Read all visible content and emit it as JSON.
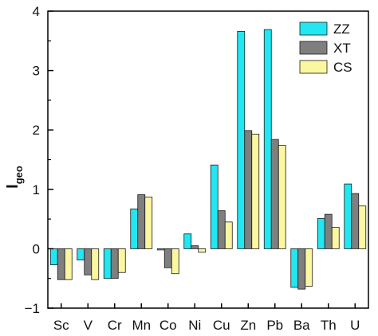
{
  "chart_data": {
    "type": "bar",
    "title": "",
    "xlabel": "",
    "ylabel": "I",
    "ylabel_sub": "geo",
    "ylim": [
      -1,
      4
    ],
    "yticks": [
      -1,
      0,
      1,
      2,
      3,
      4
    ],
    "grid": false,
    "legend_position": "top-right",
    "categories": [
      "Sc",
      "V",
      "Cr",
      "Mn",
      "Co",
      "Ni",
      "Cu",
      "Zn",
      "Pb",
      "Ba",
      "Th",
      "U"
    ],
    "series": [
      {
        "name": "ZZ",
        "color": "#22e6f0",
        "values": [
          -0.27,
          -0.19,
          -0.5,
          0.67,
          -0.02,
          0.25,
          1.41,
          3.66,
          3.69,
          -0.65,
          0.51,
          1.09
        ]
      },
      {
        "name": "XT",
        "color": "#7f7f7f",
        "values": [
          -0.52,
          -0.44,
          -0.5,
          0.91,
          -0.32,
          0.05,
          0.64,
          1.99,
          1.84,
          -0.68,
          0.58,
          0.93
        ]
      },
      {
        "name": "CS",
        "color": "#fbf6a0",
        "values": [
          -0.52,
          -0.52,
          -0.4,
          0.87,
          -0.42,
          -0.06,
          0.45,
          1.93,
          1.74,
          -0.63,
          0.36,
          0.72
        ]
      }
    ]
  }
}
